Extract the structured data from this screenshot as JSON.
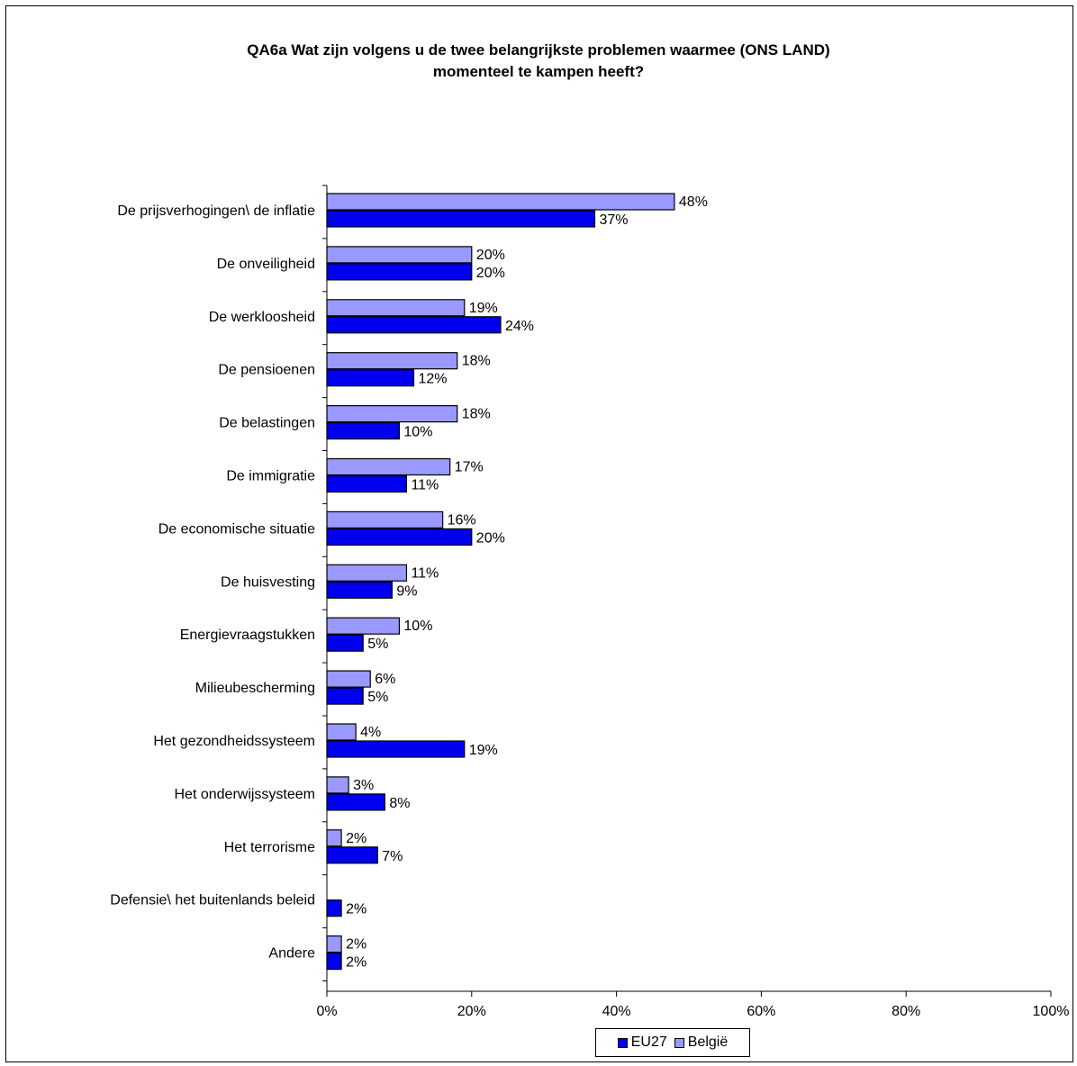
{
  "colors": {
    "eu27": "#0000ee",
    "belgie": "#9999ff",
    "bar_stroke": "#000000",
    "axis": "#000000"
  },
  "chart_data": {
    "type": "bar",
    "orientation": "horizontal",
    "title_lines": [
      "QA6a Wat zijn volgens u de twee belangrijkste problemen waarmee (ONS LAND)",
      "momenteel te kampen heeft?"
    ],
    "categories": [
      "De prijsverhogingen\\ de inflatie",
      "De onveiligheid",
      "De werkloosheid",
      "De pensioenen",
      "De belastingen",
      "De immigratie",
      "De economische situatie",
      "De huisvesting",
      "Energievraagstukken",
      "Milieubescherming",
      "Het gezondheidssysteem",
      "Het onderwijssysteem",
      "Het terrorisme",
      "Defensie\\ het buitenlands beleid",
      "Andere"
    ],
    "series": [
      {
        "name": "België",
        "values": [
          48,
          20,
          19,
          18,
          18,
          17,
          16,
          11,
          10,
          6,
          4,
          3,
          2,
          null,
          2
        ]
      },
      {
        "name": "EU27",
        "values": [
          37,
          20,
          24,
          12,
          10,
          11,
          20,
          9,
          5,
          5,
          19,
          8,
          7,
          2,
          2
        ]
      }
    ],
    "xlim": [
      0,
      100
    ],
    "xticks": [
      "0%",
      "20%",
      "40%",
      "60%",
      "80%",
      "100%"
    ],
    "value_suffix": "%",
    "legend": {
      "position": "bottom-center",
      "entries": [
        "EU27",
        "België"
      ]
    },
    "grid": false
  }
}
